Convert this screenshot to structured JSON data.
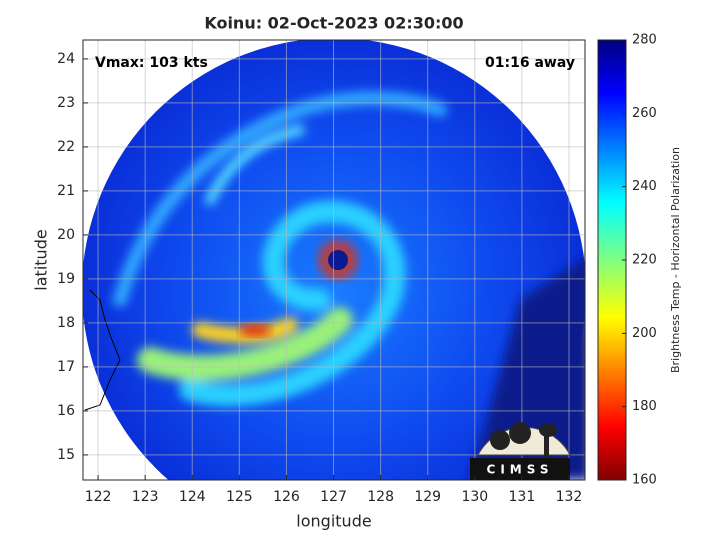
{
  "chart_data": {
    "type": "map",
    "title": "Koinu: 02-Oct-2023 02:30:00",
    "annotations": [
      "Vmax: 103 kts",
      "01:16 away"
    ],
    "x_label": "longitude",
    "y_label": "latitude",
    "xlim": [
      121.68,
      132.34
    ],
    "ylim": [
      14.43,
      24.43
    ],
    "xticks": [
      122,
      123,
      124,
      125,
      126,
      127,
      128,
      129,
      130,
      131,
      132
    ],
    "yticks": [
      15,
      16,
      17,
      18,
      19,
      20,
      21,
      22,
      23,
      24
    ],
    "grid": true,
    "colorbar": {
      "label": "Brightness Temp - Horizontal Polarization",
      "lim": [
        160,
        280
      ],
      "ticks": [
        160,
        180,
        200,
        220,
        240,
        260,
        280
      ]
    },
    "logo": "CIMSS"
  }
}
